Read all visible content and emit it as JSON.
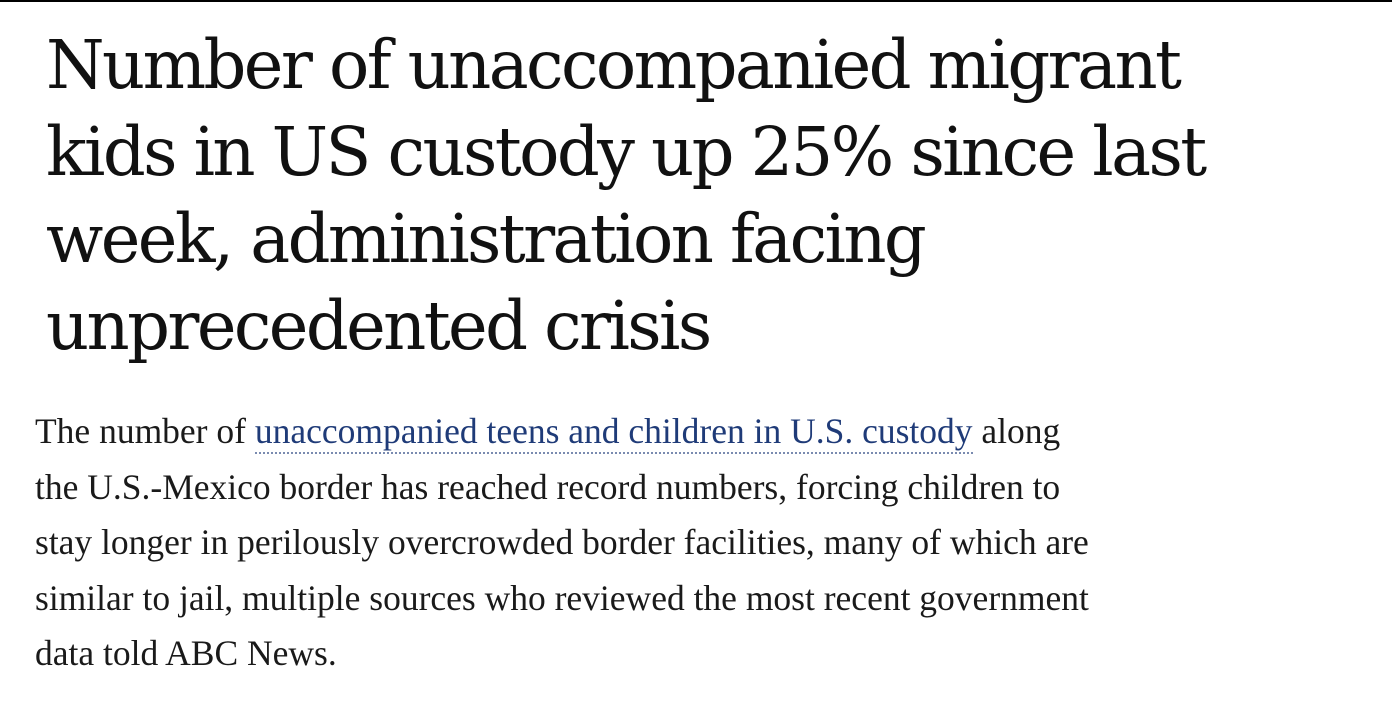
{
  "article": {
    "headline_lines": [
      "Number of unaccompanied migrant",
      "kids in US custody up 25% since last",
      "week, administration facing",
      "unprecedented crisis"
    ],
    "body": {
      "line1_before_link": "The number of ",
      "link_text": "unaccompanied teens and children in U.S. custody",
      "line1_after_link": " along",
      "line2": "the U.S.-Mexico border has reached record numbers, forcing children to",
      "line3": "stay longer in perilously overcrowded border facilities, many of which are",
      "line4": "similar to jail, multiple sources who reviewed the most recent government",
      "line5": "data told ABC News."
    }
  },
  "colors": {
    "text": "#111111",
    "link": "#1f3b78",
    "top_rule": "#000000"
  }
}
